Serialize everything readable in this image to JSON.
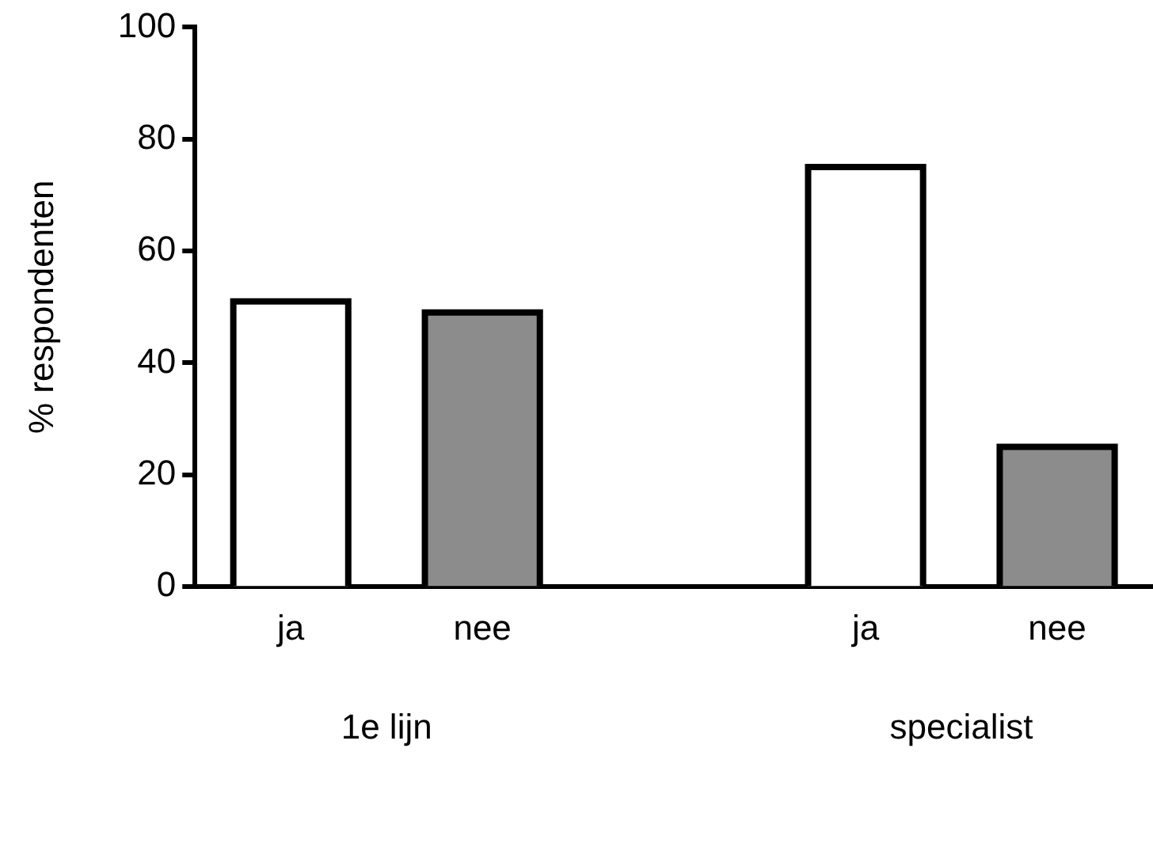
{
  "chart_data": {
    "type": "bar",
    "ylabel": "% respondenten",
    "categories": [
      "ja",
      "nee",
      null,
      "ja",
      "nee"
    ],
    "values": [
      51,
      49,
      null,
      75,
      25
    ],
    "colors": [
      "#ffffff",
      "#8c8c8c",
      "#ffffff",
      "#ffffff",
      "#8c8c8c"
    ],
    "ylim": [
      0,
      100
    ],
    "yticks": [
      0,
      20,
      40,
      60,
      80,
      100
    ],
    "grid": false,
    "legend": false,
    "annotations": [
      "1e lijn",
      "specialist"
    ]
  }
}
